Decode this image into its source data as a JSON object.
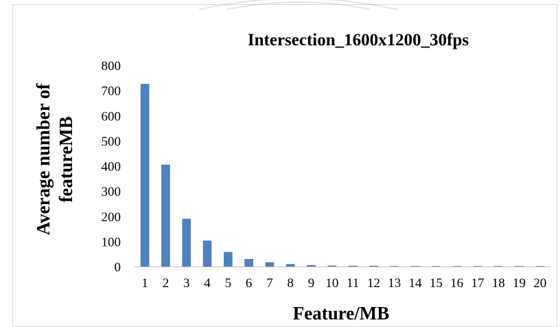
{
  "chart_data": {
    "type": "bar",
    "title": "Intersection_1600x1200_30fps",
    "xlabel": "Feature/MB",
    "ylabel_lines": [
      "Average number of",
      "featureMB"
    ],
    "categories": [
      "1",
      "2",
      "3",
      "4",
      "5",
      "6",
      "7",
      "8",
      "9",
      "10",
      "11",
      "12",
      "13",
      "14",
      "15",
      "16",
      "17",
      "18",
      "19",
      "20"
    ],
    "values": [
      726,
      405,
      190,
      103,
      58,
      30,
      17,
      10,
      6,
      4,
      3,
      3,
      2,
      2,
      2,
      2,
      2,
      2,
      2,
      2
    ],
    "yticks": [
      0,
      100,
      200,
      300,
      400,
      500,
      600,
      700,
      800
    ],
    "ylim": [
      0,
      800
    ],
    "grid": false,
    "legend": "none",
    "bar_color": "#4f81bd"
  }
}
